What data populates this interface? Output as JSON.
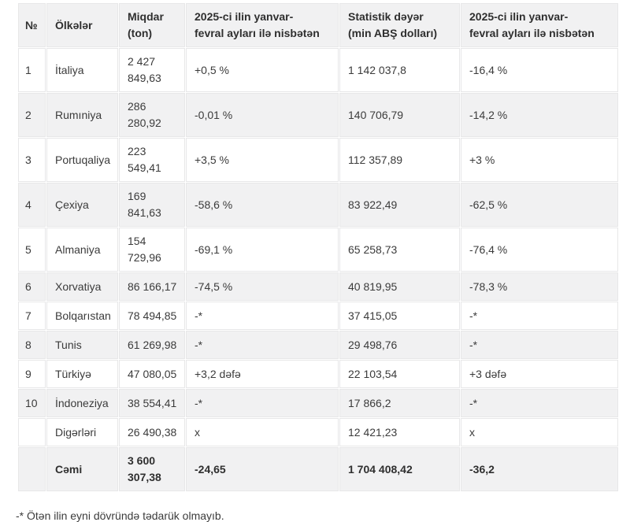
{
  "table": {
    "headers": [
      "№",
      "Ölkələr",
      "Miqdar\n(ton)",
      "2025-ci ilin yanvar-\nfevral ayları ilə nisbətən",
      "Statistik dəyər\n(min ABŞ dolları)",
      "2025-ci ilin yanvar-\nfevral ayları ilə nisbətən"
    ],
    "rows": [
      [
        "1",
        "İtaliya",
        "2 427\n849,63",
        "+0,5 %",
        "1 142 037,8",
        "-16,4 %"
      ],
      [
        "2",
        "Rumıniya",
        "286\n280,92",
        "-0,01 %",
        "140 706,79",
        "-14,2 %"
      ],
      [
        "3",
        "Portuqaliya",
        "223\n549,41",
        "+3,5 %",
        "112 357,89",
        "+3 %"
      ],
      [
        "4",
        "Çexiya",
        "169\n841,63",
        "-58,6 %",
        "83 922,49",
        "-62,5 %"
      ],
      [
        "5",
        "Almaniya",
        "154\n729,96",
        "-69,1 %",
        "65 258,73",
        "-76,4 %"
      ],
      [
        "6",
        "Xorvatiya",
        "86 166,17",
        "-74,5 %",
        "40 819,95",
        "-78,3 %"
      ],
      [
        "7",
        "Bolqarıstan",
        "78 494,85",
        "-*",
        "37 415,05",
        "-*"
      ],
      [
        "8",
        "Tunis",
        "61 269,98",
        "-*",
        "29 498,76",
        "-*"
      ],
      [
        "9",
        "Türkiyə",
        "47 080,05",
        "+3,2 dəfə",
        "22 103,54",
        "+3 dəfə"
      ],
      [
        "10",
        "İndoneziya",
        "38 554,41",
        "-*",
        "17 866,2",
        "-*"
      ],
      [
        "",
        "Digərləri",
        "26 490,38",
        "x",
        "12 421,23",
        "x"
      ]
    ],
    "total_row": [
      "",
      "Cəmi",
      "3 600\n307,38",
      "-24,65",
      "1 704 408,42",
      "-36,2"
    ]
  },
  "footnote": "-* Ötən ilin eyni dövründə tədarük olmayıb.",
  "colors": {
    "header_bg": "#f1f1f2",
    "stripe_bg": "#f1f1f2",
    "border": "#e7e7e8",
    "text": "#3b3b3b"
  }
}
